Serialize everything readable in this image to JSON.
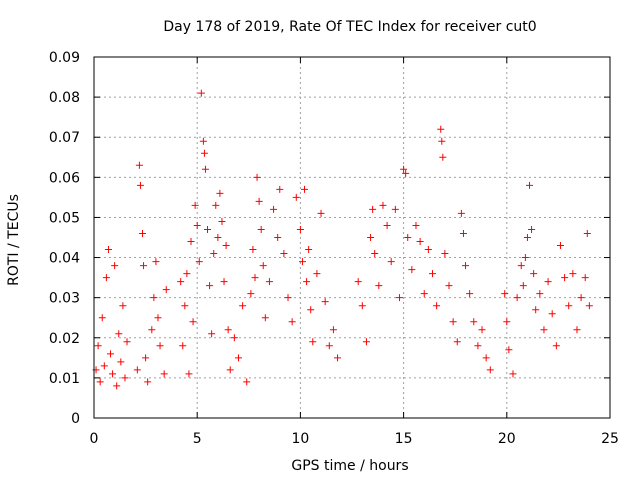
{
  "chart_data": {
    "type": "scatter",
    "title": "Day 178 of 2019, Rate Of TEC Index for receiver cut0",
    "xlabel": "GPS time / hours",
    "ylabel": "ROTI / TECUs",
    "xlim": [
      0,
      25
    ],
    "ylim": [
      0,
      0.09
    ],
    "xticks": [
      "0",
      "5",
      "10",
      "15",
      "20",
      "25"
    ],
    "yticks": [
      "0",
      "0.01",
      "0.02",
      "0.03",
      "0.04",
      "0.05",
      "0.06",
      "0.07",
      "0.08",
      "0.09"
    ],
    "grid": true,
    "marker": "+",
    "color": "#ff0000",
    "series": [
      {
        "name": "ROTI",
        "points": [
          [
            0.1,
            0.012
          ],
          [
            0.2,
            0.018
          ],
          [
            0.3,
            0.009
          ],
          [
            0.4,
            0.025
          ],
          [
            0.5,
            0.013
          ],
          [
            0.6,
            0.035
          ],
          [
            0.7,
            0.042
          ],
          [
            0.8,
            0.016
          ],
          [
            0.9,
            0.011
          ],
          [
            1.0,
            0.038
          ],
          [
            1.1,
            0.008
          ],
          [
            1.2,
            0.021
          ],
          [
            1.3,
            0.014
          ],
          [
            1.4,
            0.028
          ],
          [
            1.5,
            0.01
          ],
          [
            1.6,
            0.019
          ],
          [
            2.1,
            0.012
          ],
          [
            2.2,
            0.063
          ],
          [
            2.25,
            0.058
          ],
          [
            2.35,
            0.046
          ],
          [
            2.4,
            0.038
          ],
          [
            2.5,
            0.015
          ],
          [
            2.6,
            0.009
          ],
          [
            2.8,
            0.022
          ],
          [
            2.9,
            0.03
          ],
          [
            3.0,
            0.039
          ],
          [
            3.1,
            0.025
          ],
          [
            3.2,
            0.018
          ],
          [
            3.4,
            0.011
          ],
          [
            3.5,
            0.032
          ],
          [
            4.2,
            0.034
          ],
          [
            4.3,
            0.018
          ],
          [
            4.4,
            0.028
          ],
          [
            4.5,
            0.036
          ],
          [
            4.6,
            0.011
          ],
          [
            4.7,
            0.044
          ],
          [
            4.8,
            0.024
          ],
          [
            4.9,
            0.053
          ],
          [
            5.0,
            0.048
          ],
          [
            5.1,
            0.039
          ],
          [
            5.2,
            0.081
          ],
          [
            5.3,
            0.069
          ],
          [
            5.35,
            0.066
          ],
          [
            5.4,
            0.062
          ],
          [
            5.5,
            0.047
          ],
          [
            5.6,
            0.033
          ],
          [
            5.7,
            0.021
          ],
          [
            5.8,
            0.041
          ],
          [
            5.9,
            0.053
          ],
          [
            6.0,
            0.045
          ],
          [
            6.1,
            0.056
          ],
          [
            6.2,
            0.049
          ],
          [
            6.3,
            0.034
          ],
          [
            6.4,
            0.043
          ],
          [
            6.5,
            0.022
          ],
          [
            6.6,
            0.012
          ],
          [
            6.8,
            0.02
          ],
          [
            7.0,
            0.015
          ],
          [
            7.2,
            0.028
          ],
          [
            7.4,
            0.009
          ],
          [
            7.6,
            0.031
          ],
          [
            7.7,
            0.042
          ],
          [
            7.8,
            0.035
          ],
          [
            7.9,
            0.06
          ],
          [
            8.0,
            0.054
          ],
          [
            8.1,
            0.047
          ],
          [
            8.2,
            0.038
          ],
          [
            8.3,
            0.025
          ],
          [
            8.5,
            0.034
          ],
          [
            8.7,
            0.052
          ],
          [
            8.9,
            0.045
          ],
          [
            9.0,
            0.057
          ],
          [
            9.2,
            0.041
          ],
          [
            9.4,
            0.03
          ],
          [
            9.6,
            0.024
          ],
          [
            9.8,
            0.055
          ],
          [
            10.0,
            0.047
          ],
          [
            10.1,
            0.039
          ],
          [
            10.2,
            0.057
          ],
          [
            10.3,
            0.034
          ],
          [
            10.4,
            0.042
          ],
          [
            10.5,
            0.027
          ],
          [
            10.6,
            0.019
          ],
          [
            10.8,
            0.036
          ],
          [
            11.0,
            0.051
          ],
          [
            11.2,
            0.029
          ],
          [
            11.4,
            0.018
          ],
          [
            11.6,
            0.022
          ],
          [
            11.8,
            0.015
          ],
          [
            12.8,
            0.034
          ],
          [
            13.0,
            0.028
          ],
          [
            13.2,
            0.019
          ],
          [
            13.4,
            0.045
          ],
          [
            13.5,
            0.052
          ],
          [
            13.6,
            0.041
          ],
          [
            13.8,
            0.033
          ],
          [
            14.0,
            0.053
          ],
          [
            14.2,
            0.048
          ],
          [
            14.4,
            0.039
          ],
          [
            14.6,
            0.052
          ],
          [
            14.8,
            0.03
          ],
          [
            15.0,
            0.062
          ],
          [
            15.1,
            0.061
          ],
          [
            15.2,
            0.045
          ],
          [
            15.4,
            0.037
          ],
          [
            15.6,
            0.048
          ],
          [
            15.8,
            0.044
          ],
          [
            16.0,
            0.031
          ],
          [
            16.2,
            0.042
          ],
          [
            16.4,
            0.036
          ],
          [
            16.6,
            0.028
          ],
          [
            16.8,
            0.072
          ],
          [
            16.85,
            0.069
          ],
          [
            16.9,
            0.065
          ],
          [
            17.0,
            0.041
          ],
          [
            17.2,
            0.033
          ],
          [
            17.4,
            0.024
          ],
          [
            17.6,
            0.019
          ],
          [
            17.8,
            0.051
          ],
          [
            17.9,
            0.046
          ],
          [
            18.0,
            0.038
          ],
          [
            18.2,
            0.031
          ],
          [
            18.4,
            0.024
          ],
          [
            18.6,
            0.018
          ],
          [
            18.8,
            0.022
          ],
          [
            19.0,
            0.015
          ],
          [
            19.2,
            0.012
          ],
          [
            19.9,
            0.031
          ],
          [
            20.0,
            0.024
          ],
          [
            20.1,
            0.017
          ],
          [
            20.3,
            0.011
          ],
          [
            20.5,
            0.03
          ],
          [
            20.7,
            0.038
          ],
          [
            20.8,
            0.033
          ],
          [
            20.9,
            0.04
          ],
          [
            21.0,
            0.045
          ],
          [
            21.1,
            0.058
          ],
          [
            21.2,
            0.047
          ],
          [
            21.3,
            0.036
          ],
          [
            21.4,
            0.027
          ],
          [
            21.6,
            0.031
          ],
          [
            21.8,
            0.022
          ],
          [
            22.0,
            0.034
          ],
          [
            22.2,
            0.026
          ],
          [
            22.4,
            0.018
          ],
          [
            22.6,
            0.043
          ],
          [
            22.8,
            0.035
          ],
          [
            23.0,
            0.028
          ],
          [
            23.2,
            0.036
          ],
          [
            23.4,
            0.022
          ],
          [
            23.6,
            0.03
          ],
          [
            23.8,
            0.035
          ],
          [
            23.9,
            0.046
          ],
          [
            24.0,
            0.028
          ]
        ]
      }
    ]
  }
}
